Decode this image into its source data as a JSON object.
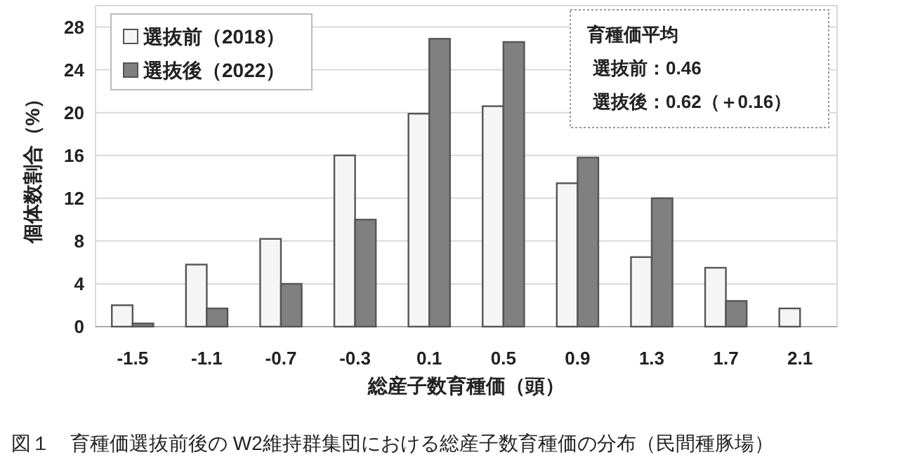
{
  "chart_data": {
    "type": "bar",
    "title": "図１　育種価選抜前後の W2維持群集団における総産子数育種価の分布（民間種豚場）",
    "xlabel": "総産子数育種価（頭）",
    "ylabel": "個体数割合（%）",
    "categories": [
      "-1.5",
      "-1.1",
      "-0.7",
      "-0.3",
      "0.1",
      "0.5",
      "0.9",
      "1.3",
      "1.7",
      "2.1"
    ],
    "series": [
      {
        "name": "選抜前（2018）",
        "color": "#f5f5f5",
        "values": [
          2.0,
          5.8,
          8.2,
          16.0,
          19.9,
          20.6,
          13.4,
          6.5,
          5.5,
          1.7
        ]
      },
      {
        "name": "選抜後（2022）",
        "color": "#808080",
        "values": [
          0.3,
          1.7,
          4.0,
          10.0,
          26.9,
          26.6,
          15.8,
          12.0,
          2.4,
          0
        ]
      }
    ],
    "ylim": [
      0,
      30
    ],
    "yticks": [
      0,
      4,
      8,
      12,
      16,
      20,
      24,
      28
    ],
    "grid": "y",
    "legend": "top left",
    "annotations": [
      "育種価平均",
      "選抜前：0.46",
      "選抜後：0.62（＋0.16）"
    ]
  }
}
